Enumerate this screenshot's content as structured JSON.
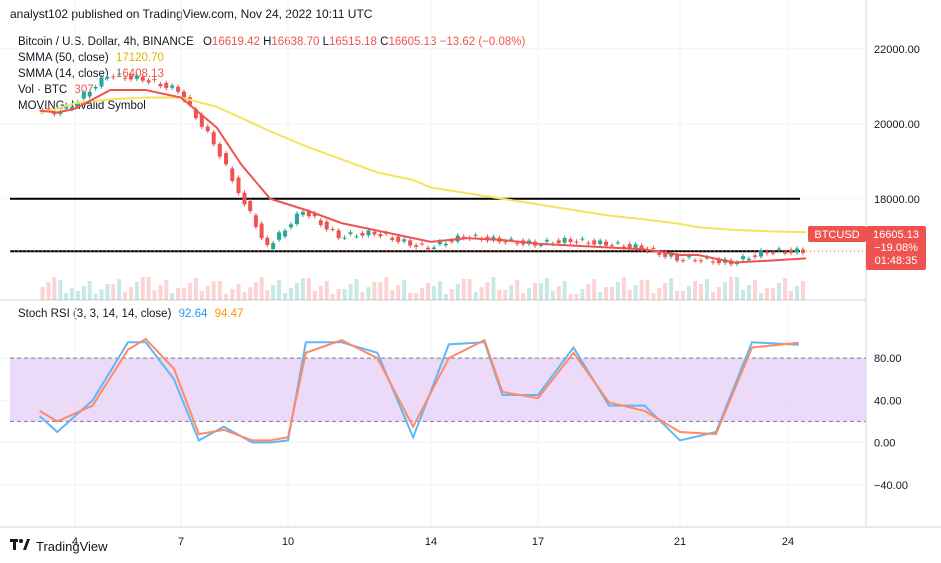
{
  "header": {
    "publisher": "analyst102 published on TradingView.com, Nov 24, 2022 10:11 UTC"
  },
  "symbol_line": {
    "symbol": "Bitcoin / U.S. Dollar, 4h, BINANCE",
    "o_key": "O",
    "o": "16619.42",
    "h_key": "H",
    "h": "16638.70",
    "l_key": "L",
    "l": "16515.18",
    "c_key": "C",
    "c": "16605.13",
    "change": "−13.62 (−0.08%)"
  },
  "indicators": [
    {
      "label": "SMMA (50, close)",
      "value": "17120.70",
      "color": "#f7d51d"
    },
    {
      "label": "SMMA (14, close)",
      "value": "16408.13",
      "color": "#ef5350"
    },
    {
      "label": "Vol · BTC",
      "value": "307",
      "color": "#ef5350"
    },
    {
      "label": "MOVING: Invalid Symbol",
      "value": "",
      "color": "#131722"
    }
  ],
  "price_badge": {
    "symbol": "BTCUSD",
    "price": "16605.13",
    "change": "−19.08%",
    "timer": "01:48:35",
    "color": "#ef5350"
  },
  "stoch_legend": {
    "label": "Stoch RSI (3, 3, 14, 14, close)",
    "k": "92.64",
    "d": "94.47",
    "k_color": "#2196f3",
    "d_color": "#ff9800"
  },
  "footer": {
    "brand": "TradingView"
  },
  "colors": {
    "up": "#26a69a",
    "down": "#ef5350",
    "smma50": "#f7e35a",
    "smma14": "#ef5350",
    "stoch_k": "#64b5f6",
    "stoch_d": "#ff8a65",
    "band_fill": "#e7d3f7",
    "band_line": "#9c27b0"
  },
  "chart_data": [
    {
      "type": "line",
      "title": "Bitcoin / U.S. Dollar, 4h, BINANCE",
      "x_ticks": [
        "4",
        "7",
        "10",
        "14",
        "17",
        "21",
        "24"
      ],
      "y_ticks": [
        "18000.00",
        "20000.00",
        "22000.00"
      ],
      "ylim": [
        15300,
        23300
      ],
      "horizontal_lines": [
        18000,
        16600
      ],
      "series": [
        {
          "name": "SMMA (50, close)",
          "values": [
            20300,
            20400,
            20550,
            20650,
            20700,
            20700,
            20450,
            20150,
            19800,
            19400,
            19050,
            18700,
            18500,
            18300,
            18150,
            18000,
            17850,
            17700,
            17550,
            17450,
            17330,
            17240,
            17170,
            17130,
            17110
          ]
        },
        {
          "name": "SMMA (14, close)",
          "values": [
            20350,
            20300,
            20400,
            20900,
            20900,
            20700,
            19900,
            18900,
            18000,
            17700,
            17350,
            17150,
            16950,
            16850,
            16950,
            16900,
            16800,
            16750,
            16700,
            16650,
            16500,
            16500,
            16300,
            16350,
            16410
          ]
        }
      ],
      "x_positions_day": [
        3,
        3.5,
        4,
        5,
        6,
        7,
        8,
        8.7,
        9.5,
        10.5,
        11.5,
        12.5,
        13.5,
        14,
        15,
        16,
        17,
        18,
        19,
        20,
        21,
        21.5,
        22.5,
        23.5,
        24.5
      ],
      "candles_close": [
        20400,
        20300,
        20500,
        21300,
        21200,
        20900,
        19500,
        18200,
        16700,
        17700,
        17000,
        17100,
        16800,
        16700,
        17000,
        16900,
        16800,
        16900,
        16800,
        16700,
        16400,
        16400,
        16300,
        16600,
        16605
      ]
    },
    {
      "type": "line",
      "title": "Stoch RSI (3, 3, 14, 14, close)",
      "x_ticks": [
        "4",
        "7",
        "10",
        "14",
        "17",
        "21",
        "24"
      ],
      "y_ticks": [
        "80.00",
        "40.00",
        "0.00",
        "−40.00"
      ],
      "ylim": [
        -80,
        135
      ],
      "band": [
        20,
        80
      ],
      "series": [
        {
          "name": "%K",
          "values": [
            25,
            10,
            40,
            95,
            95,
            60,
            2,
            15,
            0,
            0,
            2,
            95,
            95,
            85,
            5,
            93,
            95,
            45,
            45,
            90,
            35,
            35,
            2,
            10,
            95,
            92.64
          ]
        },
        {
          "name": "%D",
          "values": [
            30,
            20,
            35,
            88,
            98,
            70,
            8,
            12,
            2,
            2,
            5,
            85,
            97,
            80,
            15,
            80,
            97,
            48,
            42,
            85,
            38,
            30,
            10,
            8,
            90,
            94.47
          ]
        }
      ],
      "x_positions_day": [
        3,
        3.5,
        4.5,
        5.5,
        6,
        6.8,
        7.5,
        8.2,
        9,
        9.5,
        10,
        10.5,
        11.5,
        12.5,
        13.5,
        14.5,
        15.5,
        16,
        17,
        18,
        19,
        20,
        21,
        22,
        23,
        24.3
      ]
    }
  ]
}
